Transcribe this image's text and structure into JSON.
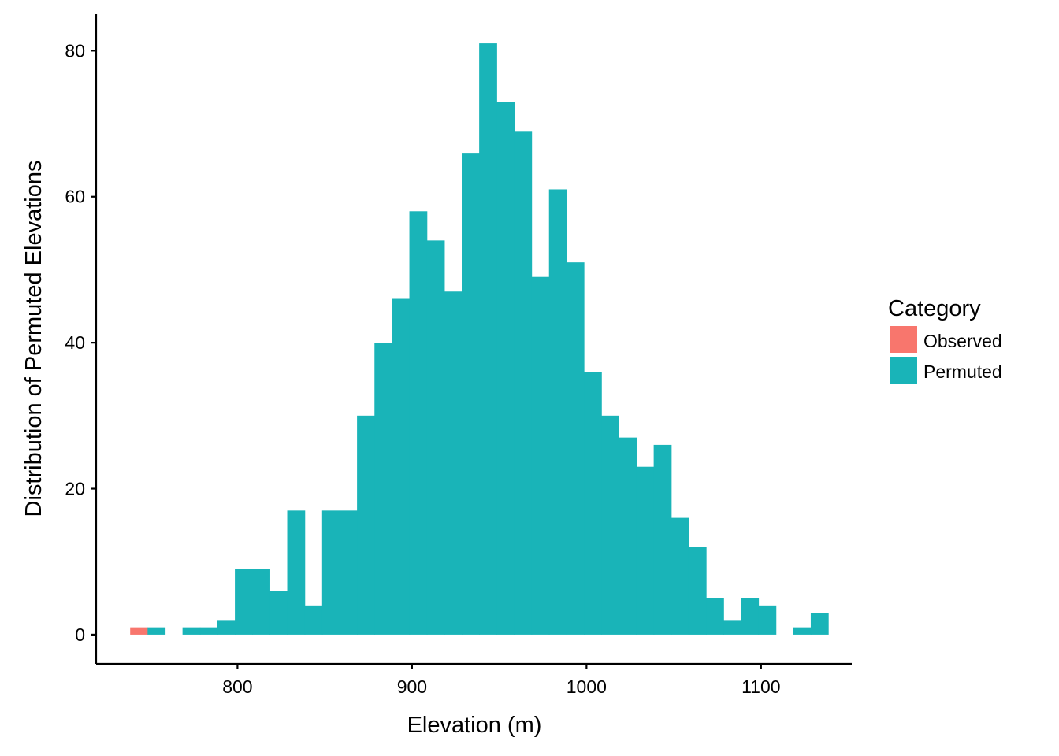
{
  "chart_data": {
    "type": "bar",
    "subtype": "histogram",
    "xlabel": "Elevation (m)",
    "ylabel": "Distribution of Permuted Elevations",
    "xlim": [
      719,
      1152
    ],
    "ylim": [
      -4,
      85
    ],
    "xticks": [
      800,
      900,
      1000,
      1100
    ],
    "yticks": [
      0,
      20,
      40,
      60,
      80
    ],
    "grid": false,
    "legend": {
      "title": "Category",
      "position": "right",
      "entries": [
        {
          "label": "Observed",
          "color": "#F8766D"
        },
        {
          "label": "Permuted",
          "color": "#19B4B8"
        }
      ]
    },
    "series": [
      {
        "name": "Observed",
        "color": "#F8766D",
        "bins": [
          {
            "x0": 738.5,
            "x1": 748.5,
            "count": 1
          }
        ]
      },
      {
        "name": "Permuted",
        "color": "#19B4B8",
        "bins": [
          {
            "x0": 748.5,
            "x1": 758.5,
            "count": 1
          },
          {
            "x0": 768.5,
            "x1": 778.5,
            "count": 1
          },
          {
            "x0": 778.5,
            "x1": 788.5,
            "count": 1
          },
          {
            "x0": 788.5,
            "x1": 798.5,
            "count": 2
          },
          {
            "x0": 798.5,
            "x1": 808.5,
            "count": 9
          },
          {
            "x0": 808.5,
            "x1": 818.5,
            "count": 9
          },
          {
            "x0": 818.5,
            "x1": 828.5,
            "count": 6
          },
          {
            "x0": 828.5,
            "x1": 838.5,
            "count": 17
          },
          {
            "x0": 838.5,
            "x1": 848.5,
            "count": 4
          },
          {
            "x0": 848.5,
            "x1": 858.5,
            "count": 17
          },
          {
            "x0": 858.5,
            "x1": 868.5,
            "count": 17
          },
          {
            "x0": 868.5,
            "x1": 878.5,
            "count": 30
          },
          {
            "x0": 878.5,
            "x1": 888.5,
            "count": 40
          },
          {
            "x0": 888.5,
            "x1": 898.5,
            "count": 46
          },
          {
            "x0": 898.5,
            "x1": 908.5,
            "count": 58
          },
          {
            "x0": 908.5,
            "x1": 918.5,
            "count": 54
          },
          {
            "x0": 918.5,
            "x1": 928.5,
            "count": 47
          },
          {
            "x0": 928.5,
            "x1": 938.5,
            "count": 66
          },
          {
            "x0": 938.5,
            "x1": 948.5,
            "count": 81
          },
          {
            "x0": 948.5,
            "x1": 958.5,
            "count": 73
          },
          {
            "x0": 958.5,
            "x1": 968.5,
            "count": 69
          },
          {
            "x0": 968.5,
            "x1": 978.5,
            "count": 49
          },
          {
            "x0": 978.5,
            "x1": 988.5,
            "count": 61
          },
          {
            "x0": 988.5,
            "x1": 998.5,
            "count": 51
          },
          {
            "x0": 998.5,
            "x1": 1008.5,
            "count": 36
          },
          {
            "x0": 1008.5,
            "x1": 1018.5,
            "count": 30
          },
          {
            "x0": 1018.5,
            "x1": 1028.5,
            "count": 27
          },
          {
            "x0": 1028.5,
            "x1": 1038.5,
            "count": 23
          },
          {
            "x0": 1038.5,
            "x1": 1048.5,
            "count": 26
          },
          {
            "x0": 1048.5,
            "x1": 1058.5,
            "count": 16
          },
          {
            "x0": 1058.5,
            "x1": 1068.5,
            "count": 12
          },
          {
            "x0": 1068.5,
            "x1": 1078.5,
            "count": 5
          },
          {
            "x0": 1078.5,
            "x1": 1088.5,
            "count": 2
          },
          {
            "x0": 1088.5,
            "x1": 1098.5,
            "count": 5
          },
          {
            "x0": 1098.5,
            "x1": 1108.5,
            "count": 4
          },
          {
            "x0": 1118.5,
            "x1": 1128.5,
            "count": 1
          },
          {
            "x0": 1128.5,
            "x1": 1138.5,
            "count": 3
          }
        ]
      }
    ]
  }
}
